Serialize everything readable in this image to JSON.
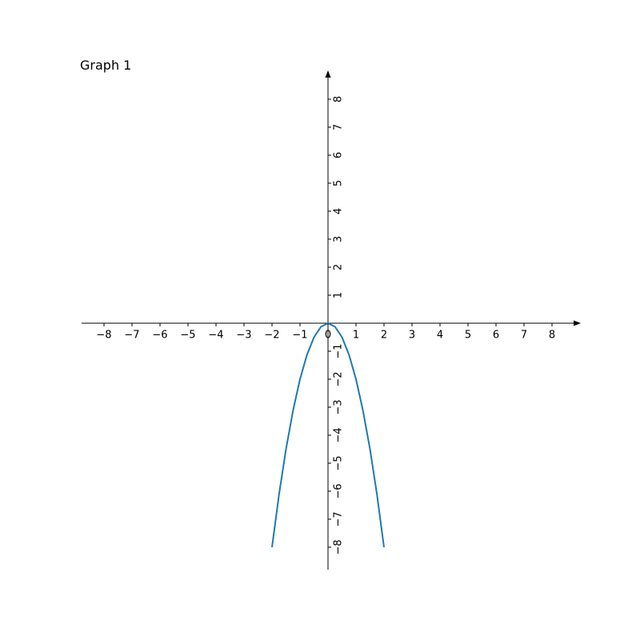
{
  "chart_data": {
    "type": "line",
    "title": "Graph 1",
    "xlabel": "",
    "ylabel": "",
    "xlim": [
      -8.8,
      9.0
    ],
    "ylim": [
      -8.8,
      9.0
    ],
    "grid": false,
    "x_ticks": [
      -8,
      -7,
      -6,
      -5,
      -4,
      -3,
      -2,
      -1,
      0,
      1,
      2,
      3,
      4,
      5,
      6,
      7,
      8
    ],
    "y_ticks": [
      -8,
      -7,
      -6,
      -5,
      -4,
      -3,
      -2,
      -1,
      1,
      2,
      3,
      4,
      5,
      6,
      7,
      8
    ],
    "x_tick_labels": [
      "−8",
      "−7",
      "−6",
      "−5",
      "−4",
      "−3",
      "−2",
      "−1",
      "0",
      "1",
      "2",
      "3",
      "4",
      "5",
      "6",
      "7",
      "8"
    ],
    "y_tick_labels": [
      "−8",
      "−7",
      "−6",
      "−5",
      "−4",
      "−3",
      "−2",
      "−1",
      "1",
      "2",
      "3",
      "4",
      "5",
      "6",
      "7",
      "8"
    ],
    "series": [
      {
        "color": "#1f77b4",
        "x": [
          -2,
          -1.75,
          -1.5,
          -1.25,
          -1,
          -0.75,
          -0.5,
          -0.25,
          0,
          0.25,
          0.5,
          0.75,
          1,
          1.25,
          1.5,
          1.75,
          2
        ],
        "y": [
          -8,
          -6.125,
          -4.5,
          -3.125,
          -2,
          -1.125,
          -0.5,
          -0.125,
          0,
          -0.125,
          -0.5,
          -1.125,
          -2,
          -3.125,
          -4.5,
          -6.125,
          -8
        ]
      }
    ]
  }
}
